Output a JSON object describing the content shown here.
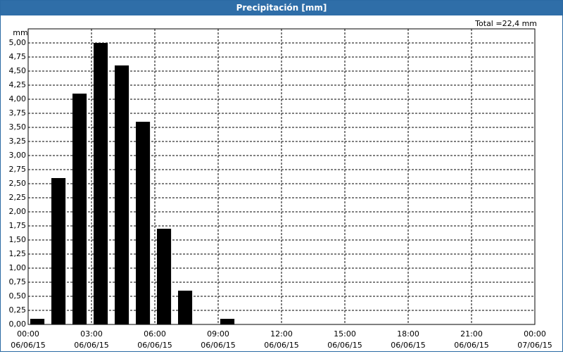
{
  "chart_data": {
    "type": "bar",
    "title": "Precipitación [mm]",
    "ylabel": "mm",
    "annotation": "Total =22,4 mm",
    "x": [
      0,
      1,
      2,
      3,
      4,
      5,
      6,
      7,
      8,
      9
    ],
    "values": [
      0.1,
      2.6,
      4.1,
      5.0,
      4.6,
      3.6,
      1.7,
      0.6,
      0,
      0.1
    ],
    "color": "#000000",
    "xlim": [
      0,
      24
    ],
    "xticks": [
      {
        "value": 0,
        "label": "00:00"
      },
      {
        "value": 3,
        "label": "03:00"
      },
      {
        "value": 6,
        "label": "06:00"
      },
      {
        "value": 9,
        "label": "09:00"
      },
      {
        "value": 12,
        "label": "12:00"
      },
      {
        "value": 15,
        "label": "15:00"
      },
      {
        "value": 18,
        "label": "18:00"
      },
      {
        "value": 21,
        "label": "21:00"
      },
      {
        "value": 24,
        "label": "00:00"
      }
    ],
    "xtick_dates": [
      "06/06/15",
      "06/06/15",
      "06/06/15",
      "06/06/15",
      "06/06/15",
      "06/06/15",
      "06/06/15",
      "06/06/15",
      "07/06/15"
    ],
    "ylim": [
      0,
      5.25
    ],
    "yticks": [
      {
        "value": 0,
        "label": "0,00"
      },
      {
        "value": 0.25,
        "label": "0,25"
      },
      {
        "value": 0.5,
        "label": "0,50"
      },
      {
        "value": 0.75,
        "label": "0,75"
      },
      {
        "value": 1,
        "label": "1,00"
      },
      {
        "value": 1.25,
        "label": "1,25"
      },
      {
        "value": 1.5,
        "label": "1,50"
      },
      {
        "value": 1.75,
        "label": "1,75"
      },
      {
        "value": 2,
        "label": "2,00"
      },
      {
        "value": 2.25,
        "label": "2,25"
      },
      {
        "value": 2.5,
        "label": "2,50"
      },
      {
        "value": 2.75,
        "label": "2,75"
      },
      {
        "value": 3,
        "label": "3,00"
      },
      {
        "value": 3.25,
        "label": "3,25"
      },
      {
        "value": 3.5,
        "label": "3,50"
      },
      {
        "value": 3.75,
        "label": "3,75"
      },
      {
        "value": 4,
        "label": "4,00"
      },
      {
        "value": 4.25,
        "label": "4,25"
      },
      {
        "value": 4.5,
        "label": "4,50"
      },
      {
        "value": 4.75,
        "label": "4,75"
      },
      {
        "value": 5,
        "label": "5,00"
      }
    ],
    "grid": true
  }
}
